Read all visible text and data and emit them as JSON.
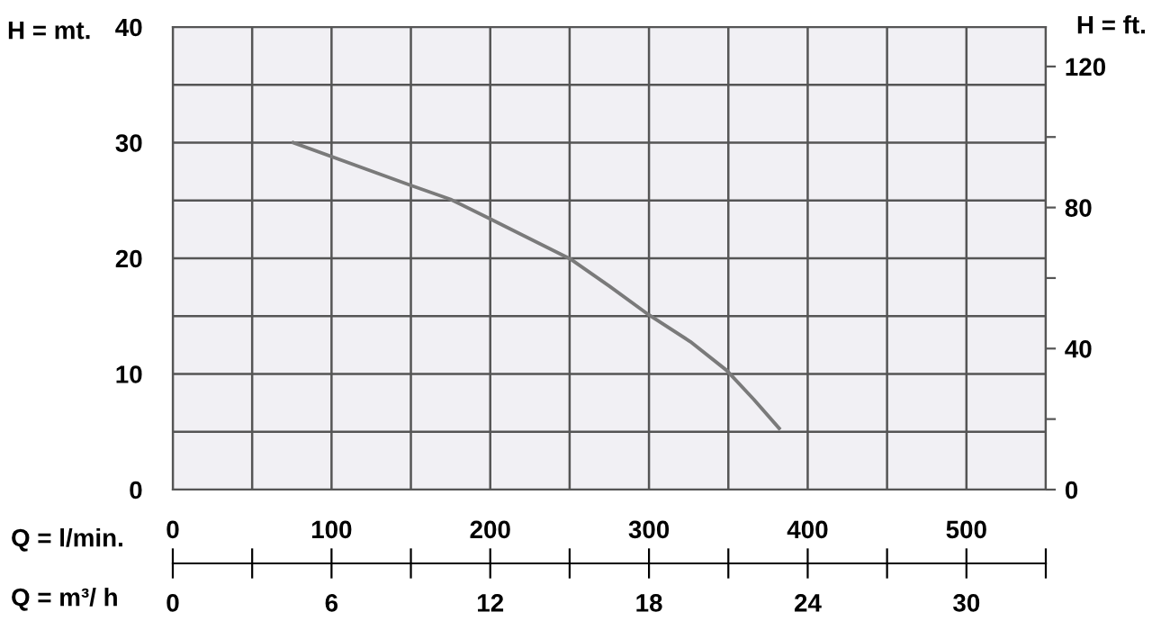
{
  "chart_data": {
    "type": "line",
    "ylabel": "H = mt.",
    "y2label": "H = ft.",
    "xlabel": "Q = l/min.",
    "x2label": "Q = m³/ h",
    "xlim": [
      0,
      550
    ],
    "xticks": [
      0,
      {
        "value": 50,
        "label": null
      },
      100,
      {
        "value": 150,
        "label": null
      },
      200,
      {
        "value": 250,
        "label": null
      },
      300,
      {
        "value": 350,
        "label": null
      },
      400,
      {
        "value": 450,
        "label": null
      },
      500,
      {
        "value": 550,
        "label": null
      }
    ],
    "x2lim": [
      0,
      33
    ],
    "x2ticks": [
      0,
      {
        "value": 3,
        "label": null
      },
      6,
      {
        "value": 9,
        "label": null
      },
      12,
      {
        "value": 15,
        "label": null
      },
      18,
      {
        "value": 21,
        "label": null
      },
      24,
      {
        "value": 27,
        "label": null
      },
      30,
      {
        "value": 33,
        "label": null
      }
    ],
    "ylim": [
      0,
      40
    ],
    "yticks": [
      0,
      {
        "value": 5,
        "label": null
      },
      10,
      {
        "value": 15,
        "label": null
      },
      20,
      {
        "value": 25,
        "label": null
      },
      30,
      {
        "value": 35,
        "label": null
      },
      40
    ],
    "y2lim": [
      0,
      131.2
    ],
    "y2ticks": [
      0,
      {
        "value": 20,
        "label": null
      },
      40,
      {
        "value": 60,
        "label": null
      },
      80,
      {
        "value": 100,
        "label": null
      },
      120
    ],
    "grid": true,
    "marker": "none",
    "line_style": "solid",
    "series": [
      {
        "color": "#7a7a7a",
        "x": [
          76,
          150,
          175,
          200,
          251,
          275,
          300,
          326,
          349,
          366,
          382
        ],
        "values": [
          30.0,
          26.3,
          25.1,
          23.4,
          19.9,
          17.6,
          15.1,
          12.8,
          10.3,
          7.8,
          5.3
        ]
      }
    ]
  }
}
